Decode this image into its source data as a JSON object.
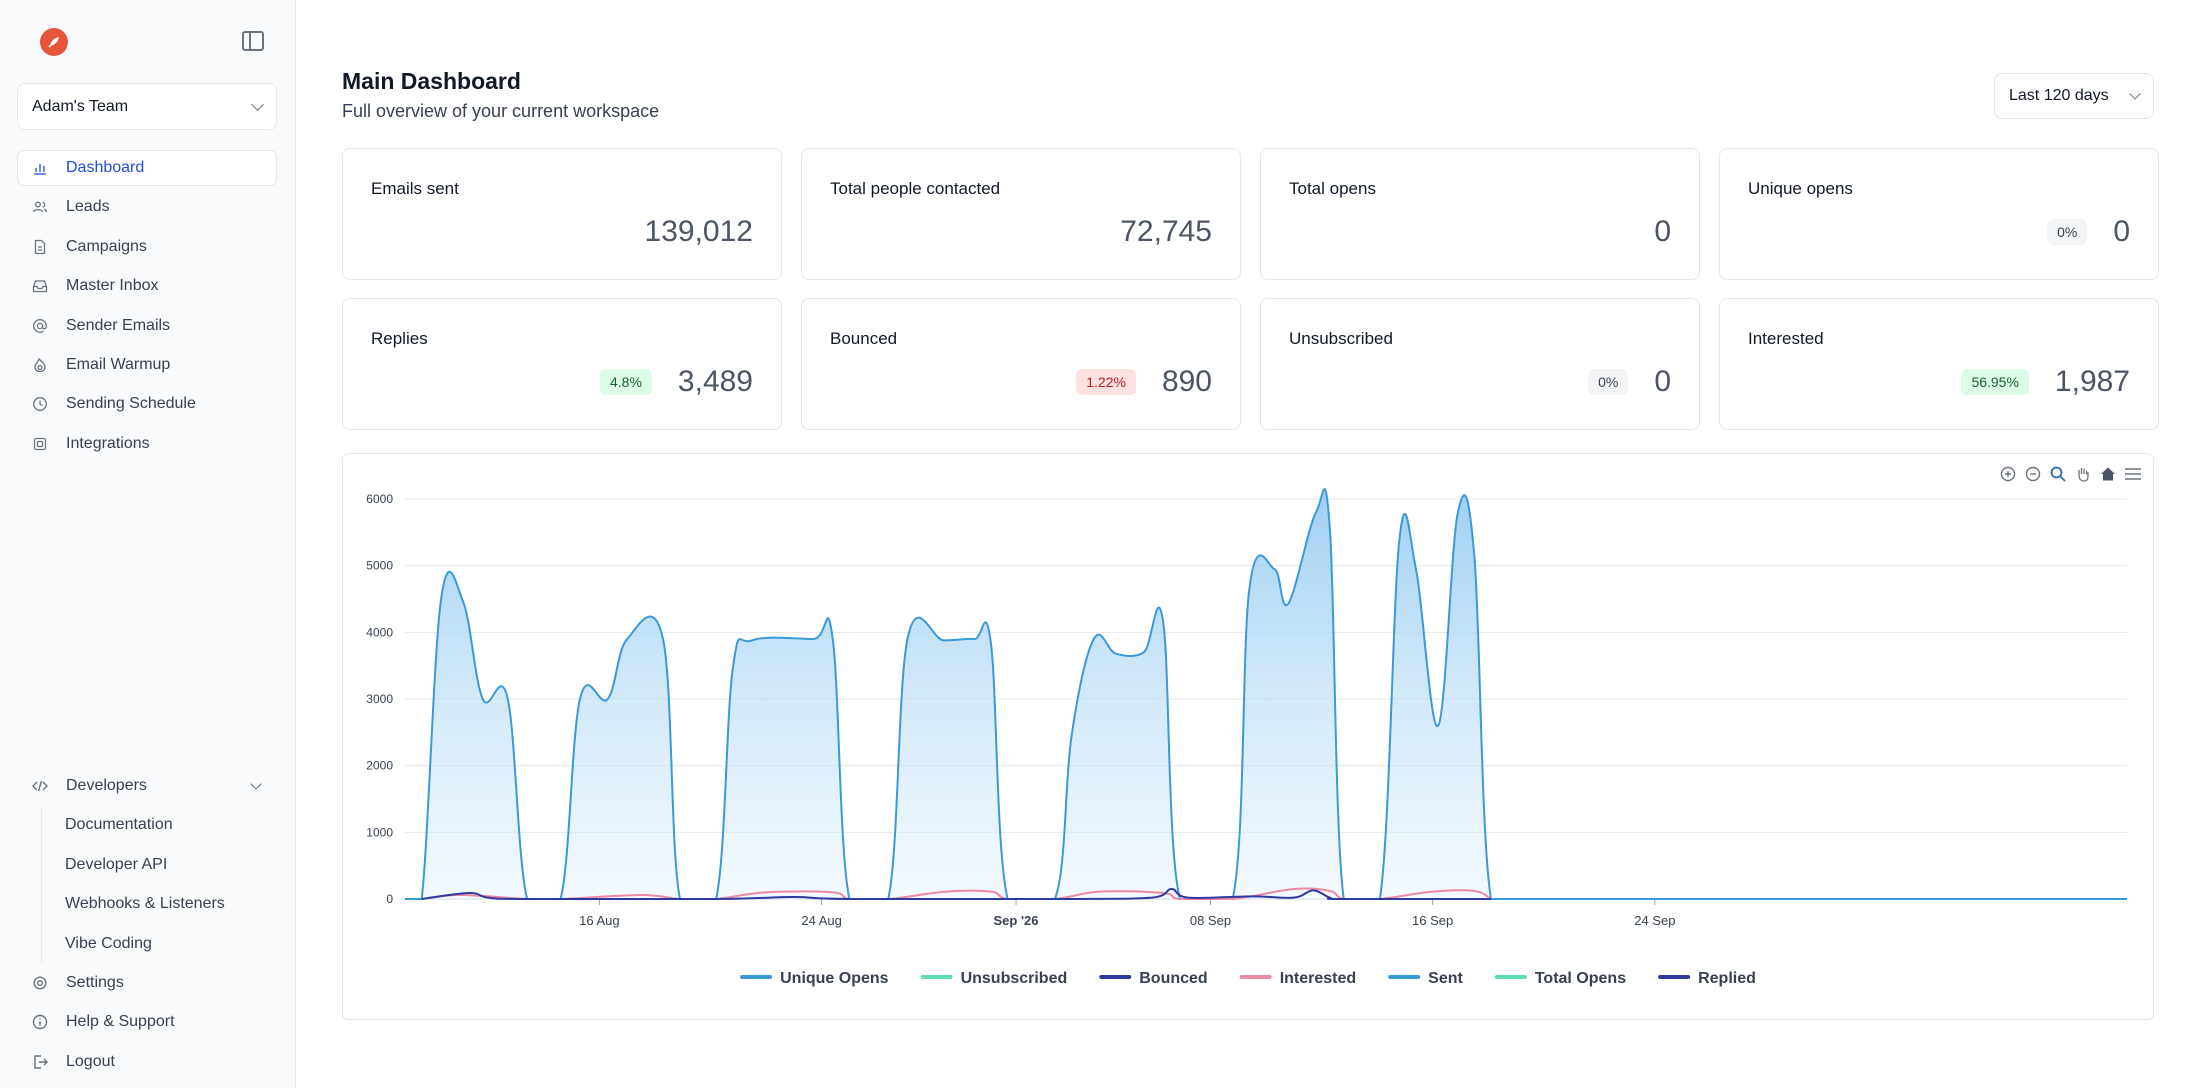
{
  "sidebar": {
    "team": "Adam's Team",
    "nav": [
      {
        "label": "Dashboard",
        "icon": "bar-chart-icon",
        "active": true
      },
      {
        "label": "Leads",
        "icon": "users-icon"
      },
      {
        "label": "Campaigns",
        "icon": "document-icon"
      },
      {
        "label": "Master Inbox",
        "icon": "inbox-icon"
      },
      {
        "label": "Sender Emails",
        "icon": "at-sign-icon"
      },
      {
        "label": "Email Warmup",
        "icon": "flame-icon"
      },
      {
        "label": "Sending Schedule",
        "icon": "clock-icon"
      },
      {
        "label": "Integrations",
        "icon": "chip-icon"
      }
    ],
    "developers": {
      "label": "Developers",
      "items": [
        "Documentation",
        "Developer API",
        "Webhooks & Listeners",
        "Vibe Coding"
      ]
    },
    "settings": "Settings",
    "help": "Help & Support",
    "logout": "Logout"
  },
  "header": {
    "title": "Main Dashboard",
    "subtitle": "Full overview of your current workspace",
    "range": "Last 120 days"
  },
  "stats": [
    {
      "label": "Emails sent",
      "value": "139,012"
    },
    {
      "label": "Total people contacted",
      "value": "72,745"
    },
    {
      "label": "Total opens",
      "value": "0"
    },
    {
      "label": "Unique opens",
      "value": "0",
      "badge": "0%",
      "badge_tone": "gray"
    },
    {
      "label": "Replies",
      "value": "3,489",
      "badge": "4.8%",
      "badge_tone": "green"
    },
    {
      "label": "Bounced",
      "value": "890",
      "badge": "1.22%",
      "badge_tone": "red"
    },
    {
      "label": "Unsubscribed",
      "value": "0",
      "badge": "0%",
      "badge_tone": "gray"
    },
    {
      "label": "Interested",
      "value": "1,987",
      "badge": "56.95%",
      "badge_tone": "green"
    }
  ],
  "chart_data": {
    "type": "area",
    "ylim": [
      0,
      6000
    ],
    "yticks": [
      0,
      1000,
      2000,
      3000,
      4000,
      5000,
      6000
    ],
    "xrange_days": [
      0,
      62
    ],
    "xticks": [
      {
        "day": 7,
        "label": "16 Aug"
      },
      {
        "day": 15,
        "label": "24 Aug"
      },
      {
        "day": 22,
        "label": "Sep '26",
        "bold": true
      },
      {
        "day": 29,
        "label": "08 Sep"
      },
      {
        "day": 37,
        "label": "16 Sep"
      },
      {
        "day": 45,
        "label": "24 Sep"
      }
    ],
    "sent": [
      [
        0.0,
        0
      ],
      [
        0.6,
        0
      ],
      [
        1.3,
        4500
      ],
      [
        2.1,
        4450
      ],
      [
        2.8,
        3000
      ],
      [
        3.7,
        3000
      ],
      [
        4.4,
        0
      ],
      [
        5.6,
        0
      ],
      [
        6.3,
        3000
      ],
      [
        7.3,
        3000
      ],
      [
        8.0,
        3900
      ],
      [
        9.3,
        3880
      ],
      [
        9.9,
        0
      ],
      [
        11.2,
        0
      ],
      [
        11.8,
        3450
      ],
      [
        12.5,
        3880
      ],
      [
        14.7,
        3900
      ],
      [
        15.4,
        3900
      ],
      [
        16.0,
        0
      ],
      [
        17.4,
        0
      ],
      [
        18.1,
        3920
      ],
      [
        19.4,
        3880
      ],
      [
        20.5,
        3900
      ],
      [
        21.1,
        3820
      ],
      [
        21.7,
        0
      ],
      [
        23.4,
        0
      ],
      [
        24.0,
        2450
      ],
      [
        24.8,
        3900
      ],
      [
        25.6,
        3680
      ],
      [
        26.6,
        3700
      ],
      [
        27.3,
        4150
      ],
      [
        27.9,
        0
      ],
      [
        29.8,
        0
      ],
      [
        30.4,
        4650
      ],
      [
        31.3,
        4950
      ],
      [
        31.8,
        4430
      ],
      [
        32.8,
        5800
      ],
      [
        33.3,
        5550
      ],
      [
        33.8,
        0
      ],
      [
        35.1,
        0
      ],
      [
        35.8,
        5380
      ],
      [
        36.4,
        4950
      ],
      [
        37.2,
        2600
      ],
      [
        37.9,
        5780
      ],
      [
        38.5,
        5150
      ],
      [
        39.1,
        0
      ],
      [
        40.5,
        0
      ],
      [
        62.0,
        0
      ]
    ],
    "interested": [
      [
        0.6,
        0
      ],
      [
        2.0,
        60
      ],
      [
        4.4,
        0
      ],
      [
        5.6,
        0
      ],
      [
        8.5,
        60
      ],
      [
        9.9,
        0
      ],
      [
        11.2,
        0
      ],
      [
        13.0,
        100
      ],
      [
        15.4,
        100
      ],
      [
        16.0,
        0
      ],
      [
        17.4,
        0
      ],
      [
        19.5,
        110
      ],
      [
        21.1,
        110
      ],
      [
        21.7,
        0
      ],
      [
        23.4,
        0
      ],
      [
        25.0,
        110
      ],
      [
        27.3,
        90
      ],
      [
        27.9,
        0
      ],
      [
        29.8,
        0
      ],
      [
        32.0,
        150
      ],
      [
        33.3,
        120
      ],
      [
        33.8,
        0
      ],
      [
        35.1,
        0
      ],
      [
        37.0,
        110
      ],
      [
        38.5,
        120
      ],
      [
        39.1,
        0
      ]
    ],
    "bounced": [
      [
        0.6,
        0
      ],
      [
        2.3,
        90
      ],
      [
        3.0,
        20
      ],
      [
        4.4,
        0
      ],
      [
        11.2,
        0
      ],
      [
        14.0,
        30
      ],
      [
        16.0,
        0
      ],
      [
        24.0,
        0
      ],
      [
        26.9,
        20
      ],
      [
        27.6,
        150
      ],
      [
        28.2,
        20
      ],
      [
        30.5,
        40
      ],
      [
        32.0,
        20
      ],
      [
        32.7,
        130
      ],
      [
        33.3,
        20
      ],
      [
        33.8,
        0
      ],
      [
        39.1,
        0
      ]
    ],
    "legend": [
      {
        "name": "Unique Opens",
        "color": "#3a9ad9"
      },
      {
        "name": "Unsubscribed",
        "color": "#5edcb3"
      },
      {
        "name": "Bounced",
        "color": "#2e3a9e"
      },
      {
        "name": "Interested",
        "color": "#ec8aa4"
      },
      {
        "name": "Sent",
        "color": "#3a9ad9"
      },
      {
        "name": "Total Opens",
        "color": "#5edcb3"
      },
      {
        "name": "Replied",
        "color": "#2e3a9e"
      }
    ]
  }
}
